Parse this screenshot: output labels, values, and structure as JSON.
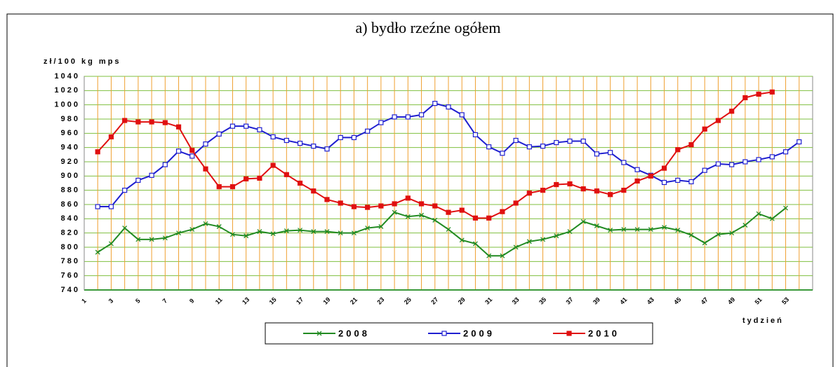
{
  "chart_data": {
    "type": "line",
    "title": "a) bydło rzeźne ogółem",
    "y_label": "zł/100 kg mps",
    "x_label": "tydzień",
    "xlim": [
      1,
      55
    ],
    "xticks": [
      1,
      3,
      5,
      7,
      9,
      11,
      13,
      15,
      17,
      19,
      21,
      23,
      25,
      27,
      29,
      31,
      33,
      35,
      37,
      39,
      41,
      43,
      45,
      47,
      49,
      51,
      53
    ],
    "xminorticks": [
      2,
      4,
      6,
      8,
      10,
      12,
      14,
      16,
      18,
      20,
      22,
      24,
      26,
      28,
      30,
      32,
      34,
      36,
      38,
      40,
      42,
      44,
      46,
      48,
      50,
      52,
      54
    ],
    "ylim": [
      740,
      1040
    ],
    "yticks": [
      740,
      760,
      780,
      800,
      820,
      840,
      860,
      880,
      900,
      920,
      940,
      960,
      980,
      1000,
      1020,
      1040
    ],
    "grid": true,
    "series": [
      {
        "name": "2008",
        "color": "#228b22",
        "marker": "x",
        "x": [
          2,
          3,
          4,
          5,
          6,
          7,
          8,
          9,
          10,
          11,
          12,
          13,
          14,
          15,
          16,
          17,
          18,
          19,
          20,
          21,
          22,
          23,
          24,
          25,
          26,
          27,
          28,
          29,
          30,
          31,
          32,
          33,
          34,
          35,
          36,
          37,
          38,
          39,
          40,
          41,
          42,
          43,
          44,
          45,
          46,
          47,
          48,
          49,
          50,
          51,
          52,
          53
        ],
        "values": [
          793,
          805,
          827,
          811,
          811,
          813,
          820,
          825,
          833,
          829,
          818,
          816,
          822,
          819,
          823,
          824,
          822,
          822,
          820,
          820,
          827,
          829,
          849,
          843,
          845,
          838,
          825,
          810,
          805,
          788,
          788,
          800,
          808,
          811,
          816,
          822,
          836,
          830,
          824,
          825,
          825,
          825,
          828,
          824,
          817,
          806,
          818,
          820,
          831,
          847,
          840,
          855
        ]
      },
      {
        "name": "2009",
        "color": "#1f1fd0",
        "marker": "open-square",
        "x": [
          2,
          3,
          4,
          5,
          6,
          7,
          8,
          9,
          10,
          11,
          12,
          13,
          14,
          15,
          16,
          17,
          18,
          19,
          20,
          21,
          22,
          23,
          24,
          25,
          26,
          27,
          28,
          29,
          30,
          31,
          32,
          33,
          34,
          35,
          36,
          37,
          38,
          39,
          40,
          41,
          42,
          43,
          44,
          45,
          46,
          47,
          48,
          49,
          50,
          51,
          52,
          53,
          54
        ],
        "values": [
          857,
          857,
          880,
          894,
          901,
          916,
          935,
          928,
          945,
          959,
          970,
          970,
          965,
          955,
          950,
          946,
          942,
          938,
          954,
          954,
          963,
          975,
          983,
          983,
          986,
          1002,
          997,
          986,
          958,
          941,
          932,
          950,
          941,
          942,
          947,
          949,
          949,
          931,
          933,
          919,
          909,
          901,
          891,
          894,
          892,
          908,
          917,
          916,
          920,
          923,
          927,
          934,
          948
        ]
      },
      {
        "name": "2010",
        "color": "#e01010",
        "marker": "square",
        "x": [
          2,
          3,
          4,
          5,
          6,
          7,
          8,
          9,
          10,
          11,
          12,
          13,
          14,
          15,
          16,
          17,
          18,
          19,
          20,
          21,
          22,
          23,
          24,
          25,
          26,
          27,
          28,
          29,
          30,
          31,
          32,
          33,
          34,
          35,
          36,
          37,
          38,
          39,
          40,
          41,
          42,
          43,
          44,
          45,
          46,
          47,
          48,
          49,
          50,
          51,
          52
        ],
        "values": [
          934,
          955,
          978,
          976,
          976,
          975,
          969,
          936,
          910,
          885,
          885,
          896,
          897,
          915,
          902,
          890,
          879,
          867,
          862,
          857,
          856,
          858,
          861,
          869,
          861,
          858,
          849,
          852,
          841,
          841,
          850,
          862,
          876,
          880,
          888,
          889,
          882,
          879,
          874,
          880,
          893,
          900,
          911,
          937,
          944,
          966,
          978,
          991,
          1010,
          1015,
          1018
        ]
      }
    ]
  }
}
